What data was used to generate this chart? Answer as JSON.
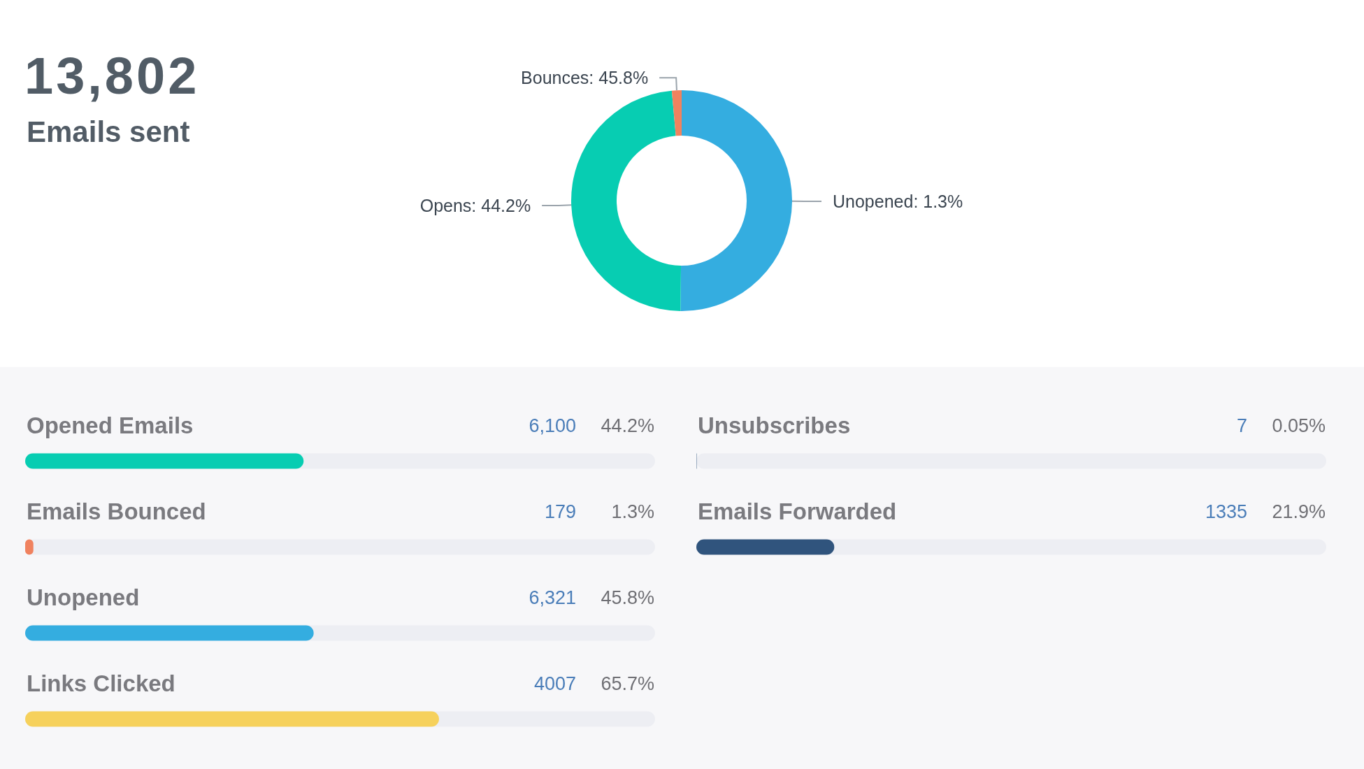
{
  "chart_data": [
    {
      "type": "other",
      "title": "13,802",
      "subtitle": "Emails sent"
    },
    {
      "type": "donut",
      "categories": [
        "Unopened: 1.3%",
        "Opens: 44.2%",
        "Bounces: 45.8%"
      ],
      "values": [
        45.8,
        44.2,
        1.3
      ],
      "colors": [
        "#34ade0",
        "#07cdb2",
        "#f0825f"
      ]
    },
    {
      "type": "bar",
      "orientation": "horizontal",
      "categories": [
        "Opened Emails",
        "Emails Bounced",
        "Unopened",
        "Links Clicked"
      ],
      "values": [
        44.2,
        1.3,
        45.8,
        65.7
      ],
      "colors": [
        "#07cdb2",
        "#f0825f",
        "#34ade0",
        "#f6d15c"
      ],
      "xlim": [
        0,
        100
      ],
      "tick_labels": "y",
      "value_labels": [
        "44.2%",
        "1.3%",
        "45.8%",
        "65.7%"
      ],
      "annotations": [
        "6,100",
        "179",
        "6,321",
        "4007"
      ]
    },
    {
      "type": "bar",
      "orientation": "horizontal",
      "categories": [
        "Unsubscribes",
        "Emails Forwarded"
      ],
      "values": [
        0.05,
        21.9
      ],
      "color": "#30547d",
      "xlim": [
        0,
        100
      ],
      "tick_labels": "y",
      "value_labels": [
        "0.05%",
        "21.9%"
      ],
      "annotations": [
        "7",
        "1335"
      ]
    }
  ]
}
